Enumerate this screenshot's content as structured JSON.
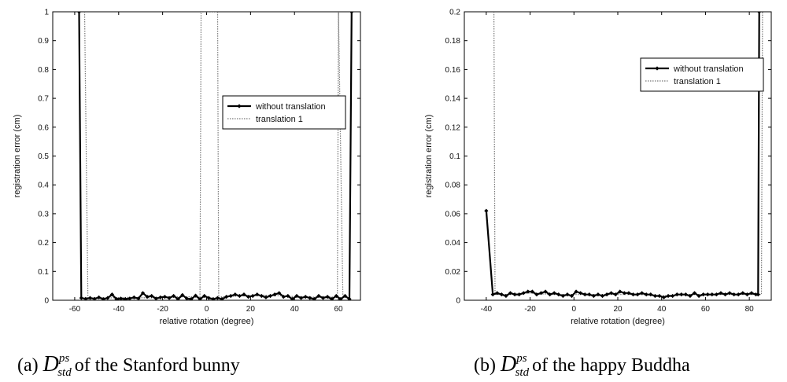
{
  "chart_data": [
    {
      "type": "line",
      "caption_prefix": "(a)",
      "caption_symbol": "D",
      "caption_sup": "ps",
      "caption_sub": "std",
      "caption_suffix": "of the Stanford bunny",
      "xlabel": "relative rotation (degree)",
      "ylabel": "registration error (cm)",
      "xlim": [
        -70,
        70
      ],
      "ylim": [
        0,
        1
      ],
      "xticks": [
        -60,
        -40,
        -20,
        0,
        20,
        40,
        60
      ],
      "yticks": [
        0,
        0.1,
        0.2,
        0.3,
        0.4,
        0.5,
        0.6,
        0.7,
        0.8,
        0.9,
        1
      ],
      "legend_position": "center-right",
      "series": [
        {
          "name": "without translation",
          "style": "solid-diamond",
          "color": "#000000",
          "x": [
            -58,
            -57,
            -55,
            -53,
            -51,
            -49,
            -47,
            -45,
            -43,
            -41,
            -39,
            -37,
            -35,
            -33,
            -31,
            -29,
            -27,
            -25,
            -23,
            -21,
            -19,
            -17,
            -15,
            -13,
            -11,
            -9,
            -7,
            -5,
            -3,
            -1,
            1,
            3,
            5,
            7,
            9,
            11,
            13,
            15,
            17,
            19,
            21,
            23,
            25,
            27,
            29,
            31,
            33,
            35,
            37,
            39,
            41,
            43,
            45,
            47,
            49,
            51,
            53,
            55,
            57,
            59,
            61,
            63,
            65,
            66
          ],
          "y": [
            1,
            0.008,
            0.005,
            0.008,
            0.005,
            0.01,
            0.004,
            0.008,
            0.02,
            0.004,
            0.006,
            0.004,
            0.006,
            0.01,
            0.006,
            0.025,
            0.012,
            0.015,
            0.006,
            0.01,
            0.012,
            0.008,
            0.015,
            0.004,
            0.018,
            0.006,
            0.004,
            0.016,
            0.004,
            0.015,
            0.008,
            0.004,
            0.008,
            0.004,
            0.012,
            0.015,
            0.02,
            0.015,
            0.02,
            0.012,
            0.015,
            0.02,
            0.015,
            0.01,
            0.015,
            0.02,
            0.025,
            0.012,
            0.015,
            0.004,
            0.015,
            0.008,
            0.012,
            0.008,
            0.004,
            0.015,
            0.008,
            0.012,
            0.004,
            0.015,
            0.004,
            0.015,
            0.004,
            1
          ]
        },
        {
          "name": "translation 1",
          "style": "dotted",
          "color": "#777777",
          "x": [
            -55.5,
            -54,
            -45,
            -35,
            -25,
            -15,
            -5,
            -3,
            -2.5,
            5,
            5.5,
            7,
            15,
            25,
            35,
            45,
            55,
            59.5,
            60,
            62
          ],
          "y": [
            1,
            0.008,
            0.008,
            0.01,
            0.008,
            0.012,
            0.012,
            0.01,
            1,
            1,
            0.01,
            0.012,
            0.015,
            0.018,
            0.015,
            0.01,
            0.012,
            0.01,
            1,
            0.01
          ]
        }
      ]
    },
    {
      "type": "line",
      "caption_prefix": "(b)",
      "caption_symbol": "D",
      "caption_sup": "ps",
      "caption_sub": "std",
      "caption_suffix": "of the happy Buddha",
      "xlabel": "relative rotation (degree)",
      "ylabel": "registration error (cm)",
      "xlim": [
        -50,
        90
      ],
      "ylim": [
        0,
        0.2
      ],
      "xticks": [
        -40,
        -20,
        0,
        20,
        40,
        60,
        80
      ],
      "yticks": [
        0,
        0.02,
        0.04,
        0.06,
        0.08,
        0.1,
        0.12,
        0.14,
        0.16,
        0.18,
        0.2
      ],
      "legend_position": "top-right",
      "series": [
        {
          "name": "without translation",
          "style": "solid-diamond",
          "color": "#000000",
          "x": [
            -40,
            -37,
            -35,
            -33,
            -31,
            -29,
            -27,
            -25,
            -23,
            -21,
            -19,
            -17,
            -15,
            -13,
            -11,
            -9,
            -7,
            -5,
            -3,
            -1,
            1,
            3,
            5,
            7,
            9,
            11,
            13,
            15,
            17,
            19,
            21,
            23,
            25,
            27,
            29,
            31,
            33,
            35,
            37,
            39,
            41,
            43,
            45,
            47,
            49,
            51,
            53,
            55,
            57,
            59,
            61,
            63,
            65,
            67,
            69,
            71,
            73,
            75,
            77,
            79,
            81,
            83,
            84,
            84.5
          ],
          "y": [
            0.062,
            0.004,
            0.005,
            0.004,
            0.003,
            0.005,
            0.004,
            0.004,
            0.005,
            0.006,
            0.006,
            0.004,
            0.005,
            0.006,
            0.004,
            0.005,
            0.004,
            0.003,
            0.004,
            0.003,
            0.006,
            0.005,
            0.004,
            0.004,
            0.003,
            0.004,
            0.003,
            0.004,
            0.005,
            0.004,
            0.006,
            0.005,
            0.005,
            0.004,
            0.004,
            0.005,
            0.004,
            0.004,
            0.003,
            0.003,
            0.002,
            0.003,
            0.003,
            0.004,
            0.004,
            0.004,
            0.003,
            0.005,
            0.003,
            0.004,
            0.004,
            0.004,
            0.004,
            0.005,
            0.004,
            0.005,
            0.004,
            0.004,
            0.005,
            0.004,
            0.005,
            0.004,
            0.004,
            0.2
          ]
        },
        {
          "name": "translation 1",
          "style": "dotted",
          "color": "#777777",
          "x": [
            -36.5,
            -36,
            -30,
            -20,
            -10,
            0,
            10,
            20,
            30,
            40,
            50,
            60,
            70,
            80,
            85.5,
            86
          ],
          "y": [
            0.2,
            0.004,
            0.004,
            0.005,
            0.004,
            0.004,
            0.004,
            0.004,
            0.004,
            0.003,
            0.004,
            0.004,
            0.004,
            0.004,
            0.004,
            0.2
          ]
        }
      ]
    }
  ]
}
